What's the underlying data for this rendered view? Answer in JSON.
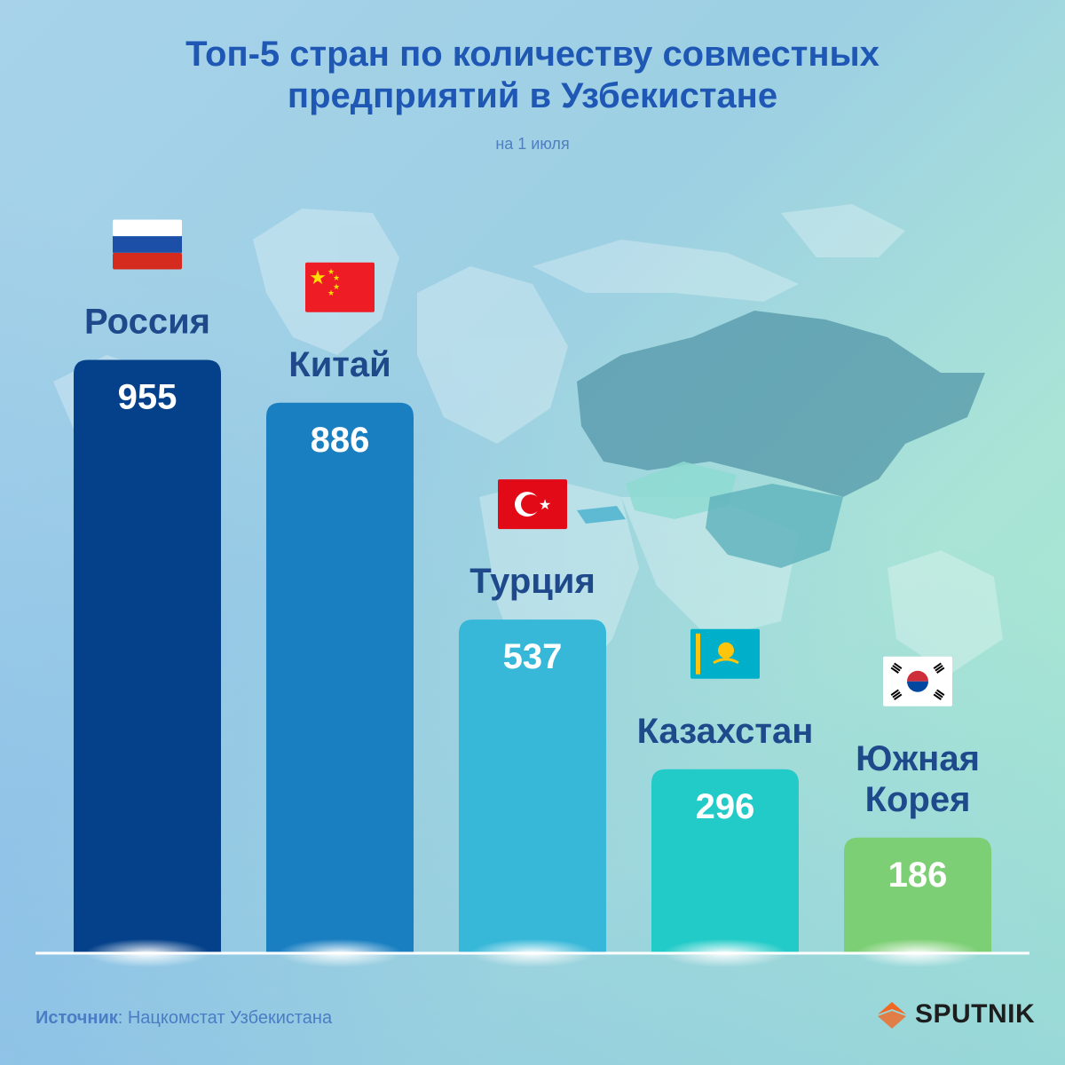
{
  "title_line1": "Топ-5 стран по количеству совместных",
  "title_line2": "предприятий в Узбекистане",
  "subtitle": "на 1 июля",
  "source_label": "Источник",
  "source_text": ": Нацкомстат Узбекистана",
  "brand": "SPUTNIK",
  "colors": {
    "title": "#1f57b4",
    "label": "#1e4a8c",
    "bar_values": "#ffffff",
    "baseline": "#ffffff",
    "logo_accent": "#f26722"
  },
  "chart_data": {
    "type": "bar",
    "title": "Топ-5 стран по количеству совместных предприятий в Узбекистане",
    "subtitle": "на 1 июля",
    "categories": [
      "Россия",
      "Китай",
      "Турция",
      "Казахстан",
      "Южная Корея"
    ],
    "category_lines": [
      [
        "Россия"
      ],
      [
        "Китай"
      ],
      [
        "Турция"
      ],
      [
        "Казахстан"
      ],
      [
        "Южная",
        "Корея"
      ]
    ],
    "values": [
      955,
      886,
      537,
      296,
      186
    ],
    "value_labels": [
      "955",
      "886",
      "537",
      "296",
      "186"
    ],
    "bar_colors": [
      "#04418a",
      "#197fc1",
      "#37b8d8",
      "#23cbc8",
      "#7dcf75"
    ],
    "flags": [
      "russia-flag",
      "china-flag",
      "turkey-flag",
      "kazakhstan-flag",
      "south-korea-flag"
    ],
    "ylim": [
      0,
      1000
    ],
    "grid": false,
    "legend": "none"
  }
}
